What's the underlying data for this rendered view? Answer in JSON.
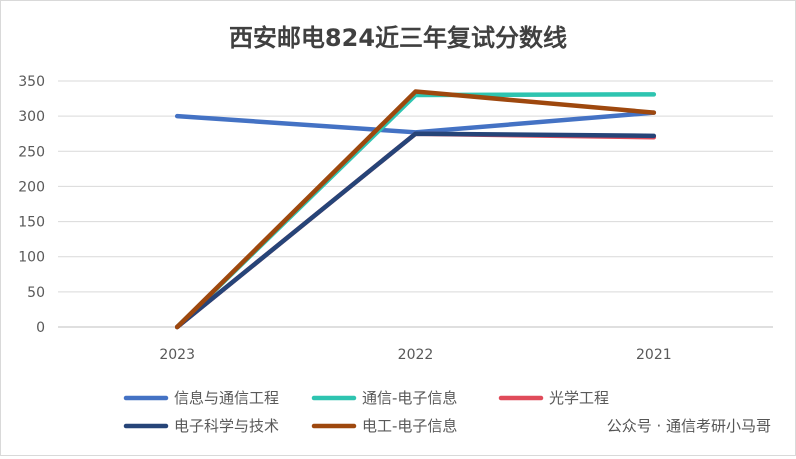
{
  "chart_data": {
    "type": "line",
    "title": "西安邮电824近三年复试分数线",
    "categories": [
      "2023",
      "2022",
      "2021"
    ],
    "ylim": [
      0,
      350
    ],
    "yticks": [
      0,
      50,
      100,
      150,
      200,
      250,
      300,
      350
    ],
    "grid": true,
    "legend": "bottom",
    "series": [
      {
        "name": "信息与通信工程",
        "color": "#4472C4",
        "values": [
          300,
          277,
          305
        ]
      },
      {
        "name": "通信-电子信息",
        "color": "#2EC4B0",
        "values": [
          0,
          330,
          331
        ]
      },
      {
        "name": "光学工程",
        "color": "#E04B5A",
        "values": [
          0,
          275,
          270
        ]
      },
      {
        "name": "电子科学与技术",
        "color": "#264478",
        "values": [
          0,
          275,
          272
        ]
      },
      {
        "name": "电工-电子信息",
        "color": "#9E480E",
        "values": [
          0,
          335,
          305
        ]
      }
    ]
  },
  "watermark": "公众号 · 通信考研小马哥"
}
